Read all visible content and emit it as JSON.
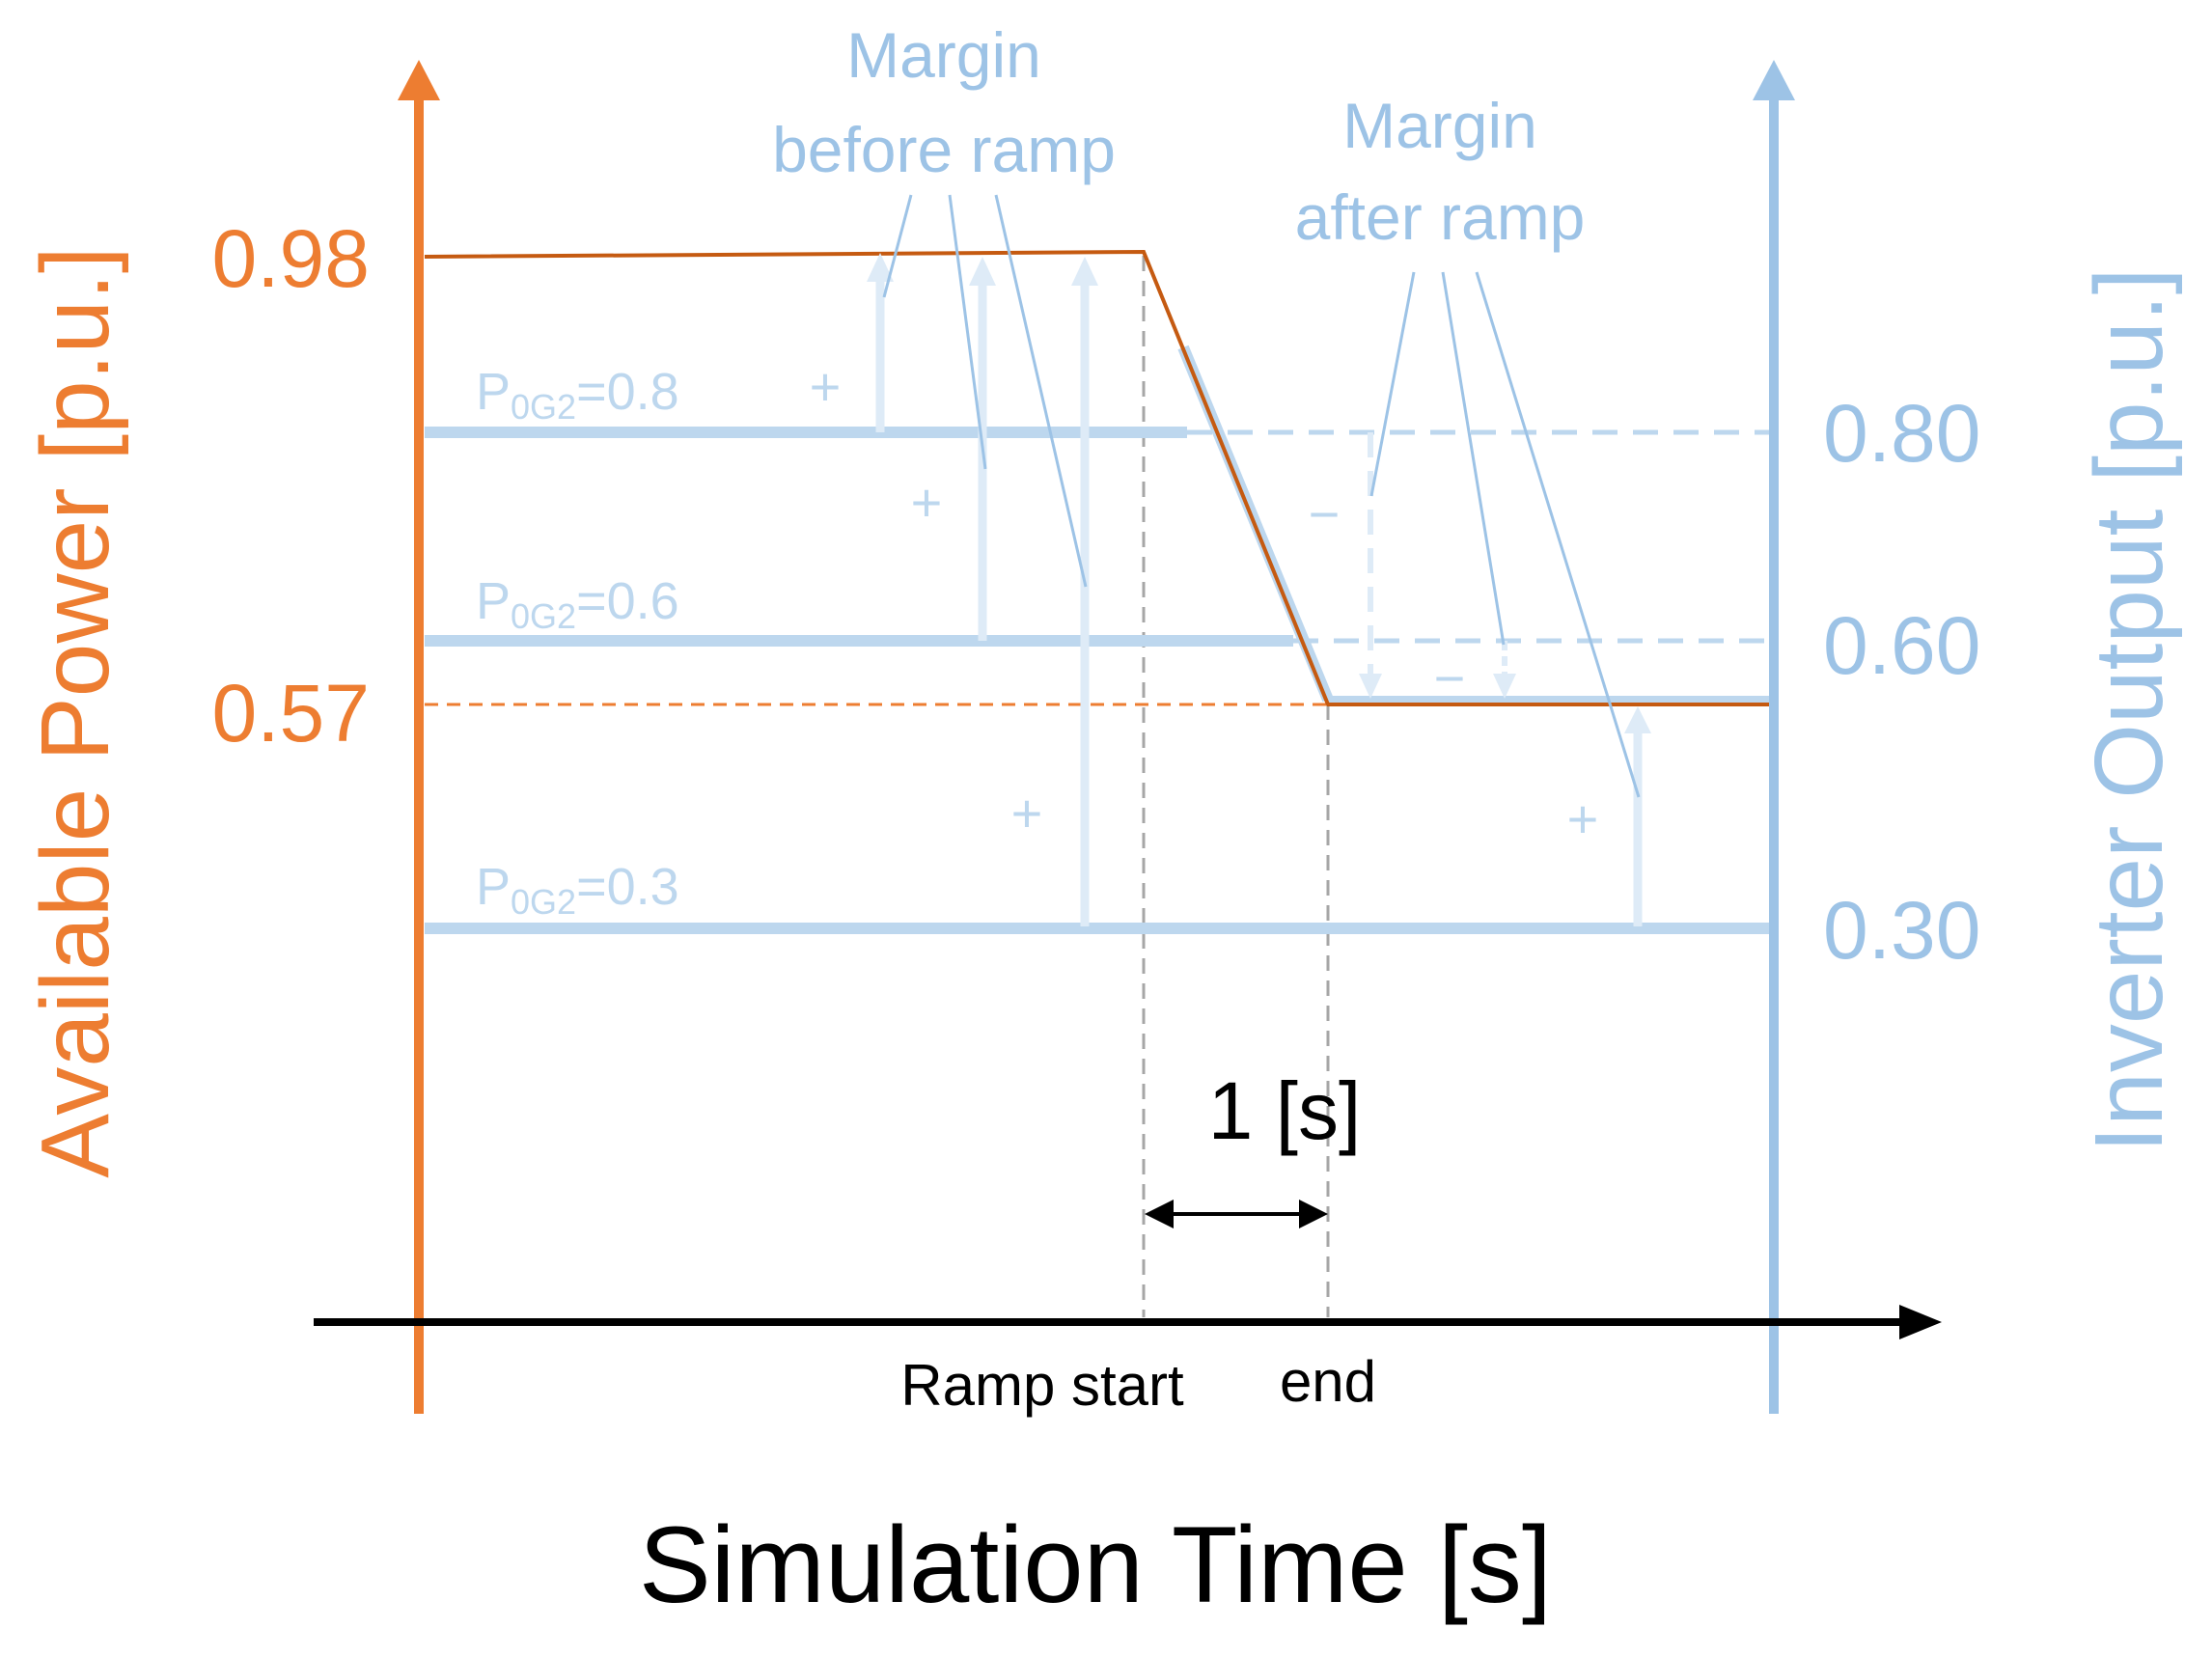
{
  "colors": {
    "orange": "#ED7D31",
    "blue": "#9DC3E6",
    "blue_light": "#BDD7EE",
    "blue_pale": "#DEEBF7",
    "brown": "#C55A11",
    "black": "#000000",
    "gray": "#A6A6A6"
  },
  "axes": {
    "left_title": "Available Power [p.u.]",
    "right_title": "Inverter Output [p.u.]",
    "x_title": "Simulation Time [s]",
    "left_ticks": [
      "0.98",
      "0.57"
    ],
    "right_ticks": [
      "0.80",
      "0.60",
      "0.30"
    ]
  },
  "series_labels": [
    {
      "main": "P",
      "sub": "0G2",
      "rest": "=0.8"
    },
    {
      "main": "P",
      "sub": "0G2",
      "rest": "=0.6"
    },
    {
      "main": "P",
      "sub": "0G2",
      "rest": "=0.3"
    }
  ],
  "annotations": {
    "margin_before_line1": "Margin",
    "margin_before_line2": "before ramp",
    "margin_after_line1": "Margin",
    "margin_after_line2": "after ramp",
    "plus": "+",
    "minus": "−",
    "duration": "1 [s]",
    "ramp_start": "Ramp start",
    "ramp_end": "end"
  },
  "values": {
    "available_power_before": 0.98,
    "available_power_after": 0.57,
    "inverter_outputs": [
      0.8,
      0.6,
      0.3
    ],
    "ramp_duration_s": 1
  }
}
